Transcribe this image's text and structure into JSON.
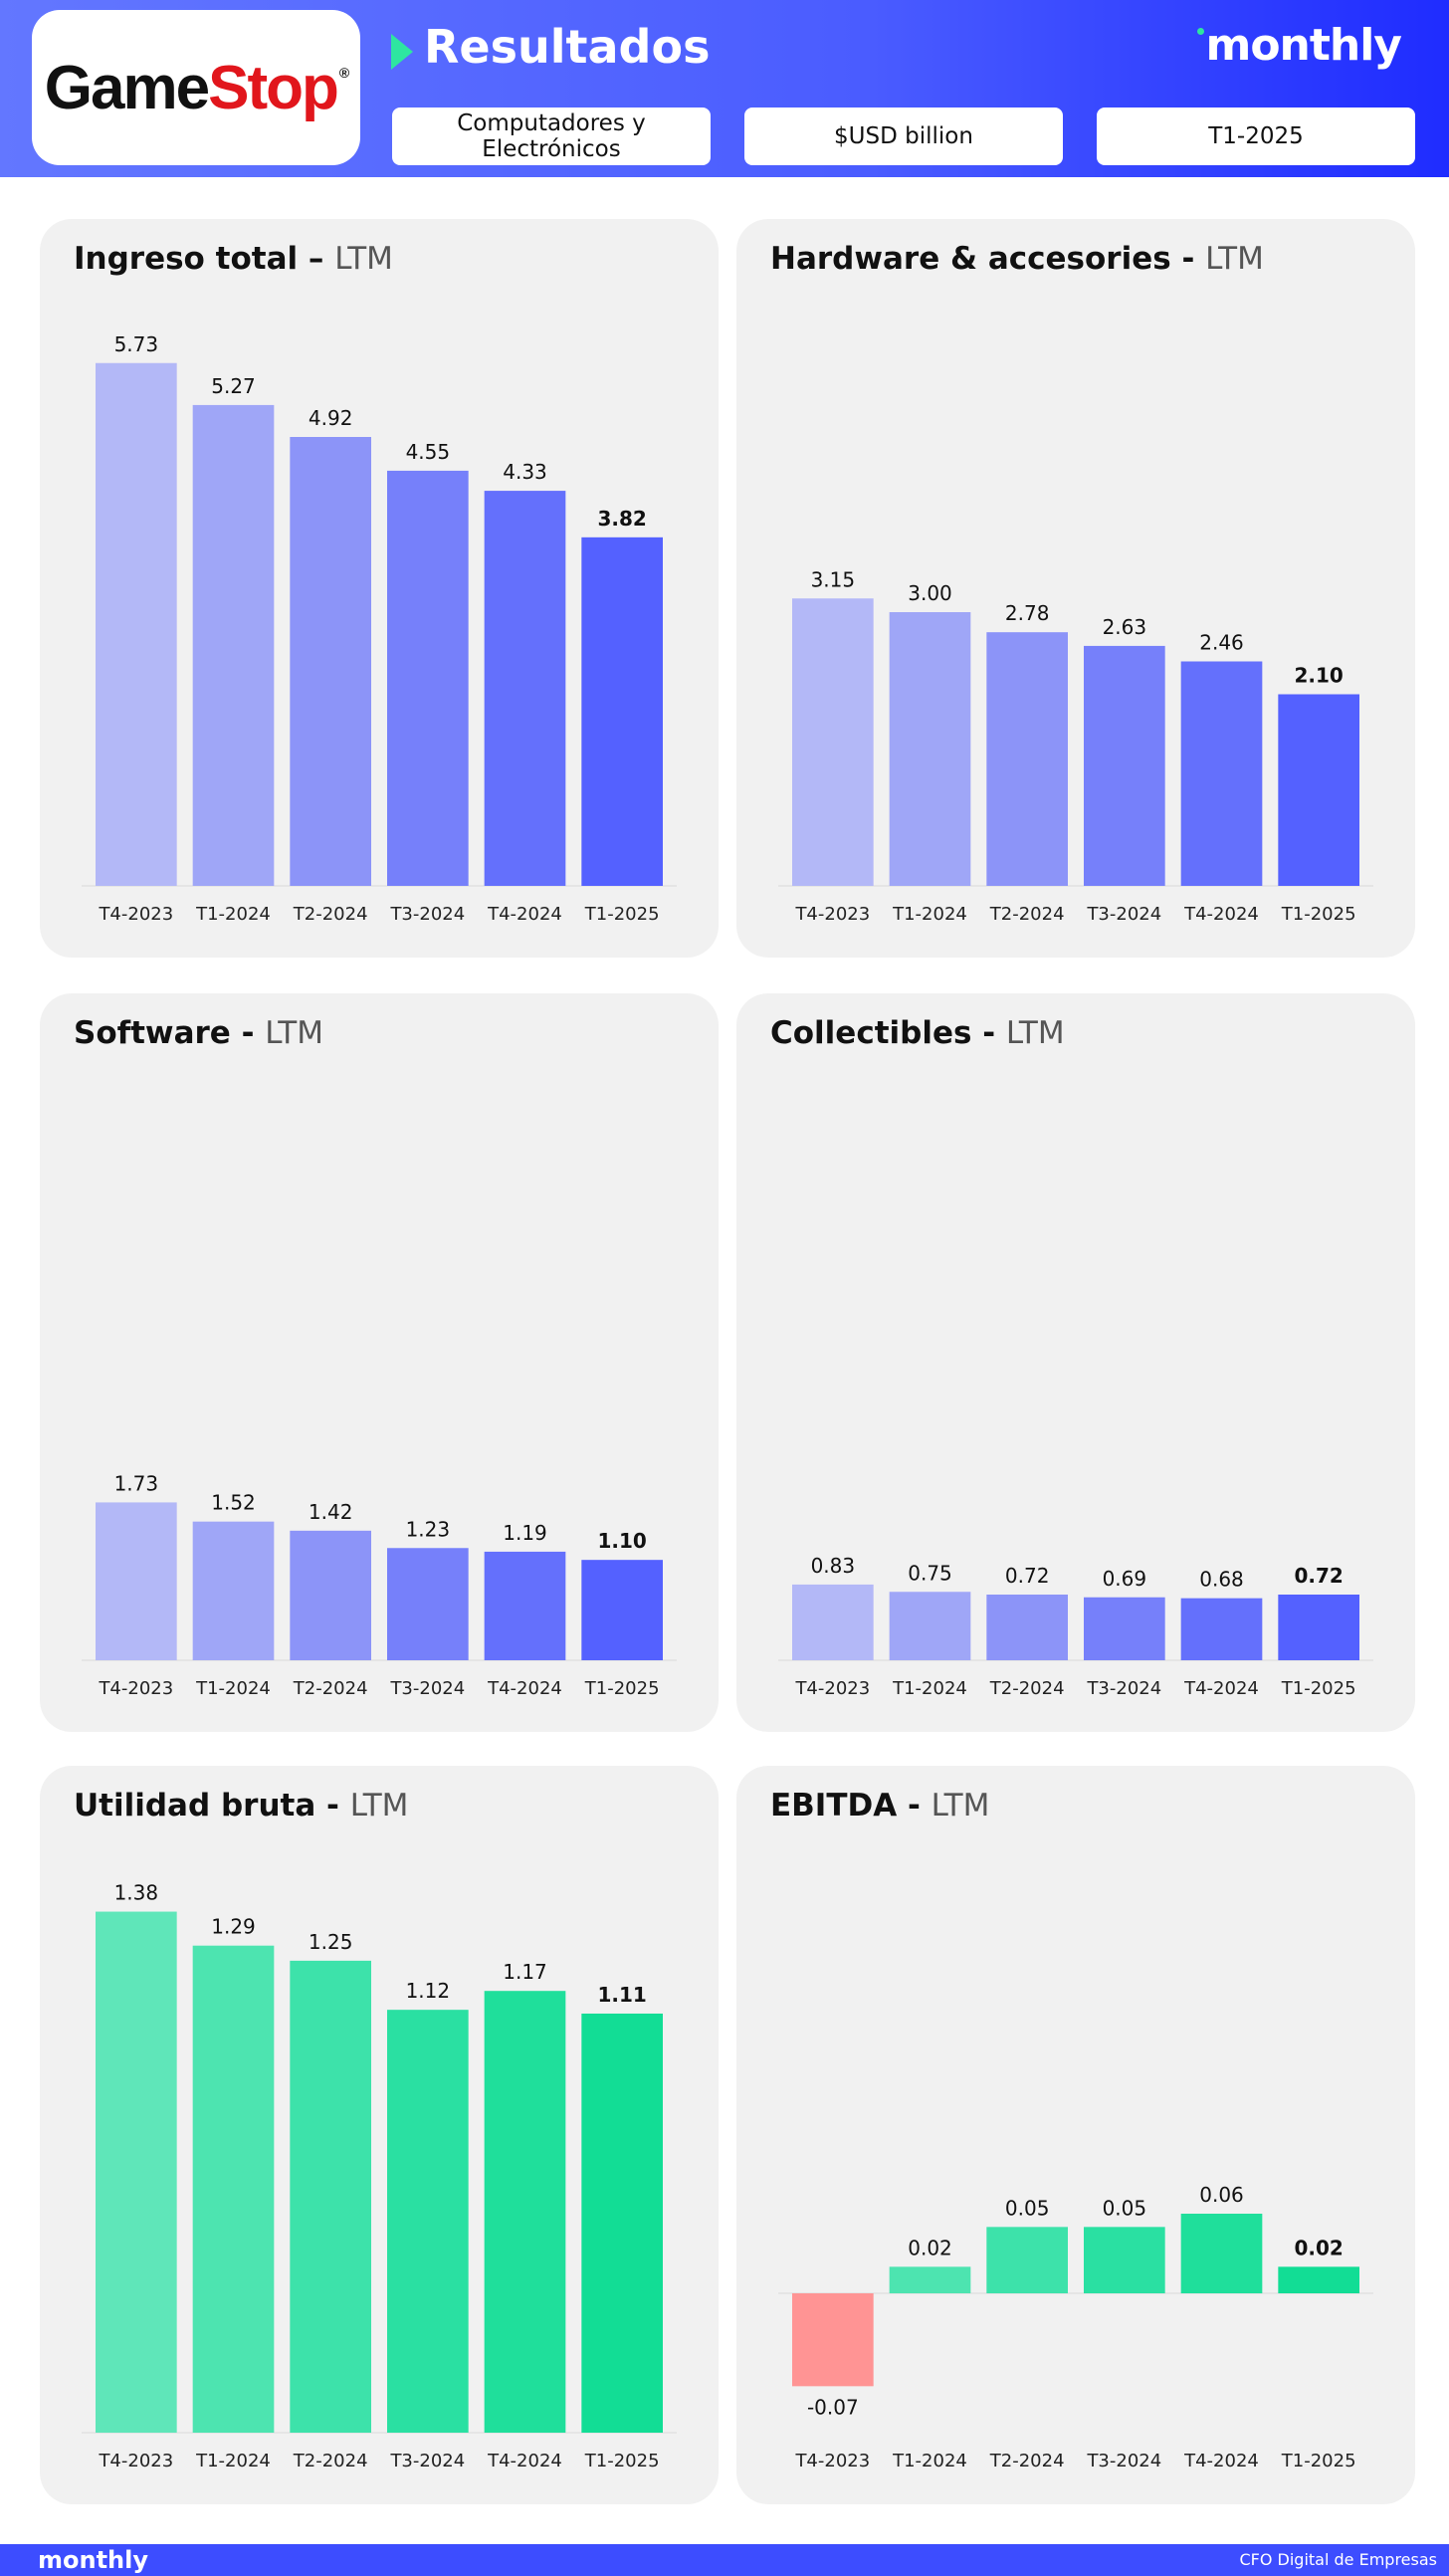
{
  "header": {
    "logo": {
      "game": "Game",
      "stop": "Stop",
      "reg": "®"
    },
    "title": "Resultados",
    "brand": "monthly",
    "pills": [
      "Computadores y Electrónicos",
      "$USD billion",
      "T1-2025"
    ]
  },
  "colors": {
    "purple": [
      "#b3b8f7",
      "#9fa6f7",
      "#8c94f8",
      "#7680fa",
      "#6470fc",
      "#5461ff"
    ],
    "green": [
      "#5fe6b9",
      "#4de4b0",
      "#3de2aa",
      "#2ae0a2",
      "#1fdf9b",
      "#12dd95"
    ],
    "negative": "#ff9494"
  },
  "chart_data": [
    {
      "type": "bar",
      "title": "Ingreso total – ",
      "subtitle": "LTM",
      "categories": [
        "T4-2023",
        "T1-2024",
        "T2-2024",
        "T3-2024",
        "T4-2024",
        "T1-2025"
      ],
      "values": [
        5.73,
        5.27,
        4.92,
        4.55,
        4.33,
        3.82
      ],
      "ylim": [
        0,
        6.0
      ],
      "palette": "purple"
    },
    {
      "type": "bar",
      "title": "Hardware & accesories - ",
      "subtitle": "LTM",
      "categories": [
        "T4-2023",
        "T1-2024",
        "T2-2024",
        "T3-2024",
        "T4-2024",
        "T1-2025"
      ],
      "values": [
        3.15,
        3.0,
        2.78,
        2.63,
        2.46,
        2.1
      ],
      "ylim": [
        0,
        6.0
      ],
      "palette": "purple"
    },
    {
      "type": "bar",
      "title": "Software - ",
      "subtitle": "LTM",
      "categories": [
        "T4-2023",
        "T1-2024",
        "T2-2024",
        "T3-2024",
        "T4-2024",
        "T1-2025"
      ],
      "values": [
        1.73,
        1.52,
        1.42,
        1.23,
        1.19,
        1.1
      ],
      "ylim": [
        0,
        6.0
      ],
      "palette": "purple"
    },
    {
      "type": "bar",
      "title": "Collectibles - ",
      "subtitle": "LTM",
      "categories": [
        "T4-2023",
        "T1-2024",
        "T2-2024",
        "T3-2024",
        "T4-2024",
        "T1-2025"
      ],
      "values": [
        0.83,
        0.75,
        0.72,
        0.69,
        0.68,
        0.72
      ],
      "ylim": [
        0,
        6.0
      ],
      "palette": "purple"
    },
    {
      "type": "bar",
      "title": "Utilidad bruta - ",
      "subtitle": "LTM",
      "categories": [
        "T4-2023",
        "T1-2024",
        "T2-2024",
        "T3-2024",
        "T4-2024",
        "T1-2025"
      ],
      "values": [
        1.38,
        1.29,
        1.25,
        1.12,
        1.17,
        1.11
      ],
      "ylim": [
        0,
        1.45
      ],
      "palette": "green"
    },
    {
      "type": "bar",
      "title": "EBITDA - ",
      "subtitle": "LTM",
      "categories": [
        "T4-2023",
        "T1-2024",
        "T2-2024",
        "T3-2024",
        "T4-2024",
        "T1-2025"
      ],
      "values": [
        -0.07,
        0.02,
        0.05,
        0.05,
        0.06,
        0.02
      ],
      "ylim": [
        -0.07,
        0.15
      ],
      "palette": "green"
    }
  ],
  "footer": {
    "brand": "monthly",
    "note": "CFO Digital de Empresas"
  }
}
